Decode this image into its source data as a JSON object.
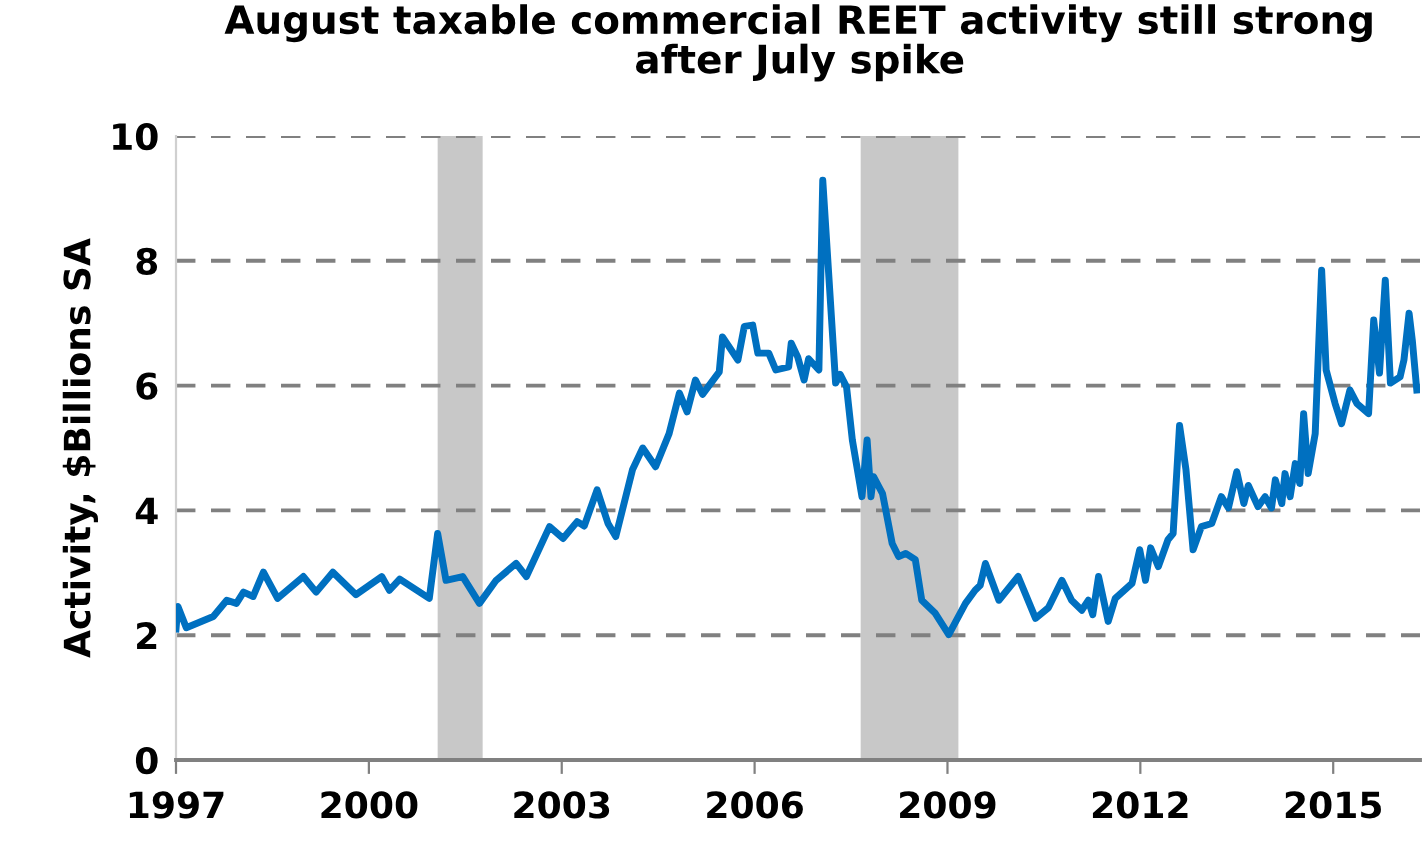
{
  "chart_data": {
    "type": "line",
    "title": "August taxable commercial REET activity still strong after July spike",
    "ylabel": "Activity, $Billions SA",
    "series": [
      {
        "color": "#0070c0",
        "x": [
          1997.0,
          1997.03,
          1997.16,
          1997.58,
          1997.79,
          1997.94,
          1998.05,
          1998.2,
          1998.36,
          1998.58,
          1998.98,
          1999.18,
          1999.44,
          1999.8,
          2000.2,
          2000.32,
          2000.48,
          2000.94,
          2001.07,
          2001.2,
          2001.46,
          2001.72,
          2001.98,
          2002.29,
          2002.45,
          2002.81,
          2003.02,
          2003.24,
          2003.35,
          2003.55,
          2003.72,
          2003.84,
          2004.1,
          2004.26,
          2004.46,
          2004.67,
          2004.83,
          2004.95,
          2005.08,
          2005.19,
          2005.45,
          2005.5,
          2005.74,
          2005.84,
          2005.97,
          2006.05,
          2006.22,
          2006.33,
          2006.53,
          2006.57,
          2006.67,
          2006.77,
          2006.84,
          2007.0,
          2007.06,
          2007.26,
          2007.33,
          2007.43,
          2007.52,
          2007.67,
          2007.75,
          2007.81,
          2007.85,
          2007.99,
          2008.14,
          2008.24,
          2008.35,
          2008.5,
          2008.6,
          2008.81,
          2009.02,
          2009.28,
          2009.43,
          2009.51,
          2009.59,
          2009.8,
          2010.1,
          2010.37,
          2010.57,
          2010.78,
          2010.93,
          2011.09,
          2011.19,
          2011.26,
          2011.35,
          2011.5,
          2011.61,
          2011.87,
          2011.99,
          2012.08,
          2012.16,
          2012.28,
          2012.43,
          2012.51,
          2012.61,
          2012.71,
          2012.82,
          2012.95,
          2013.11,
          2013.26,
          2013.37,
          2013.5,
          2013.61,
          2013.68,
          2013.83,
          2013.94,
          2014.04,
          2014.1,
          2014.2,
          2014.25,
          2014.33,
          2014.41,
          2014.48,
          2014.54,
          2014.61,
          2014.72,
          2014.82,
          2014.89,
          2015.03,
          2015.13,
          2015.26,
          2015.37,
          2015.55,
          2015.63,
          2015.72,
          2015.81,
          2015.89,
          2016.04,
          2016.1,
          2016.18,
          2016.23,
          2016.3
        ],
        "values": [
          2.1,
          2.46,
          2.12,
          2.3,
          2.56,
          2.51,
          2.69,
          2.62,
          3.01,
          2.59,
          2.94,
          2.69,
          3.01,
          2.65,
          2.94,
          2.72,
          2.9,
          2.59,
          3.63,
          2.88,
          2.94,
          2.51,
          2.88,
          3.15,
          2.94,
          3.74,
          3.55,
          3.82,
          3.75,
          4.33,
          3.79,
          3.58,
          4.65,
          5.0,
          4.7,
          5.23,
          5.88,
          5.58,
          6.09,
          5.86,
          6.22,
          6.78,
          6.41,
          6.95,
          6.97,
          6.52,
          6.52,
          6.25,
          6.3,
          6.68,
          6.46,
          6.09,
          6.43,
          6.25,
          9.29,
          6.04,
          6.18,
          5.98,
          5.13,
          4.22,
          5.13,
          4.22,
          4.54,
          4.27,
          3.47,
          3.26,
          3.31,
          3.21,
          2.56,
          2.35,
          2.01,
          2.51,
          2.72,
          2.8,
          3.15,
          2.56,
          2.94,
          2.27,
          2.44,
          2.88,
          2.56,
          2.4,
          2.56,
          2.33,
          2.94,
          2.22,
          2.59,
          2.83,
          3.37,
          2.88,
          3.4,
          3.1,
          3.53,
          3.63,
          5.36,
          4.65,
          3.37,
          3.74,
          3.79,
          4.22,
          4.04,
          4.62,
          4.11,
          4.4,
          4.06,
          4.22,
          4.04,
          4.49,
          4.11,
          4.59,
          4.22,
          4.75,
          4.43,
          5.55,
          4.59,
          5.23,
          7.85,
          6.25,
          5.71,
          5.39,
          5.93,
          5.71,
          5.55,
          7.05,
          6.2,
          7.69,
          6.04,
          6.14,
          6.41,
          7.16,
          6.73,
          5.93
        ]
      }
    ],
    "xlim": [
      1997,
      2016.35
    ],
    "xticks": [
      1997,
      2000,
      2003,
      2006,
      2009,
      2012,
      2015
    ],
    "ylim": [
      0,
      10
    ],
    "yticks": [
      0,
      2,
      4,
      6,
      8,
      10
    ],
    "bands": [
      {
        "axis": "x",
        "from": 2001.07,
        "to": 2001.77,
        "color": "#c8c8c8"
      },
      {
        "axis": "x",
        "from": 2007.65,
        "to": 2009.17,
        "color": "#c8c8c8"
      }
    ],
    "grid": "y",
    "line_style": "solid"
  }
}
